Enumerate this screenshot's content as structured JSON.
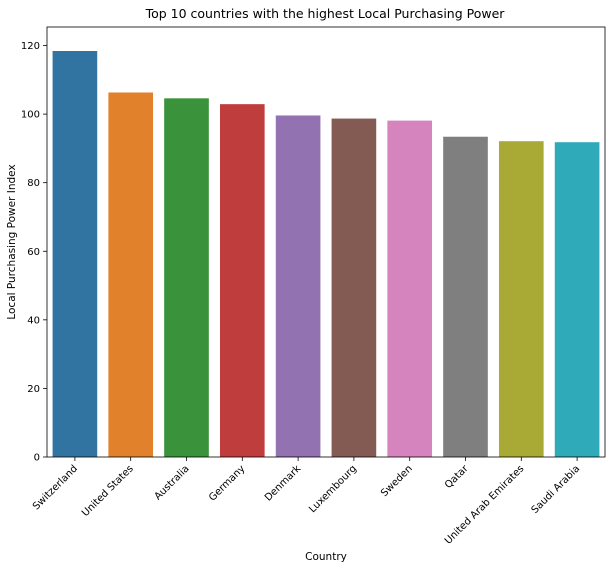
{
  "chart_data": {
    "type": "bar",
    "title": "Top 10 countries with the highest Local Purchasing Power",
    "xlabel": "Country",
    "ylabel": "Local Purchasing Power Index",
    "categories": [
      "Switzerland",
      "United States",
      "Australia",
      "Germany",
      "Denmark",
      "Luxembourg",
      "Sweden",
      "Qatar",
      "United Arab Emirates",
      "Saudi Arabia"
    ],
    "values": [
      118.4,
      106.3,
      104.6,
      102.9,
      99.6,
      98.7,
      98.1,
      93.4,
      92.1,
      91.8
    ],
    "colors": [
      "#3274a1",
      "#e1812c",
      "#3a923a",
      "#c03d3e",
      "#9372b2",
      "#845b53",
      "#d684bd",
      "#7f7f7f",
      "#a9aa35",
      "#2eaab8"
    ],
    "ylim": [
      0,
      125.4
    ],
    "yticks": [
      0,
      20,
      40,
      60,
      80,
      100,
      120
    ],
    "grid": false,
    "legend": "none"
  }
}
